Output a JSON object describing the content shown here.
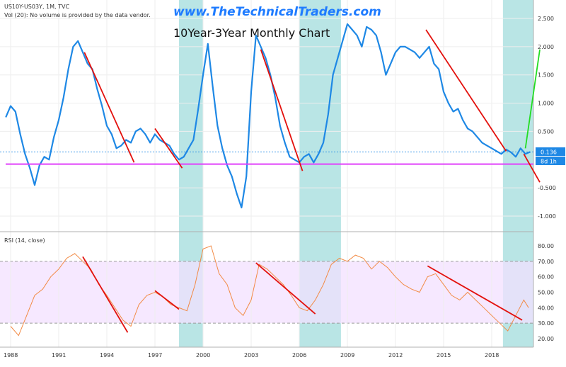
{
  "header": {
    "symbol_line": "US10Y-US03Y, 1M, TVC",
    "volume_note": "Vol (20): No volume is provided by the data vendor.",
    "watermark": "www.TheTechnicalTraders.com",
    "chart_title": "10Year-3Year Monthly Chart"
  },
  "price_pane": {
    "last_value_badge": "0.136",
    "countdown_badge": "8d 1h",
    "badge_color": "#1e88e5",
    "support_line_level": -0.08,
    "support_line_color": "#e040fb",
    "line_color": "#1e88e5",
    "trendline_color": "#e3110d",
    "projection_up_color": "#22dd22",
    "projection_down_color": "#e3110d"
  },
  "rsi_pane": {
    "label": "RSI (14, close)",
    "upper_band": 70,
    "lower_band": 30,
    "band_fill": "#f3e0ff",
    "line_color": "#f28a45"
  },
  "chart_data": [
    {
      "type": "line",
      "title": "10Year-3Year Monthly Chart",
      "series": [
        {
          "name": "US10Y-US03Y",
          "values_x": [
            1987.7,
            1988.0,
            1988.3,
            1988.6,
            1988.9,
            1989.2,
            1989.5,
            1989.8,
            1990.1,
            1990.4,
            1990.7,
            1991.0,
            1991.3,
            1991.6,
            1991.9,
            1992.2,
            1992.5,
            1992.8,
            1993.1,
            1993.4,
            1993.7,
            1994.0,
            1994.3,
            1994.6,
            1994.9,
            1995.2,
            1995.5,
            1995.8,
            1996.1,
            1996.4,
            1996.7,
            1997.0,
            1997.3,
            1997.6,
            1997.9,
            1998.2,
            1998.5,
            1998.8,
            1999.1,
            1999.4,
            1999.7,
            2000.0,
            2000.3,
            2000.6,
            2000.9,
            2001.2,
            2001.5,
            2001.8,
            2002.1,
            2002.4,
            2002.7,
            2003.0,
            2003.3,
            2003.6,
            2003.9,
            2004.2,
            2004.5,
            2004.8,
            2005.1,
            2005.4,
            2005.7,
            2006.0,
            2006.3,
            2006.6,
            2006.9,
            2007.2,
            2007.5,
            2007.8,
            2008.1,
            2008.4,
            2008.7,
            2009.0,
            2009.3,
            2009.6,
            2009.9,
            2010.2,
            2010.5,
            2010.8,
            2011.1,
            2011.4,
            2011.7,
            2012.0,
            2012.3,
            2012.6,
            2012.9,
            2013.2,
            2013.5,
            2013.8,
            2014.1,
            2014.4,
            2014.7,
            2015.0,
            2015.3,
            2015.6,
            2015.9,
            2016.2,
            2016.5,
            2016.8,
            2017.1,
            2017.4,
            2017.7,
            2018.0,
            2018.3,
            2018.6,
            2018.9,
            2019.2,
            2019.5,
            2019.8,
            2020.1,
            2020.4
          ],
          "values_y": [
            0.75,
            0.95,
            0.85,
            0.45,
            0.1,
            -0.15,
            -0.45,
            -0.1,
            0.05,
            0.0,
            0.4,
            0.7,
            1.1,
            1.6,
            2.0,
            2.1,
            1.9,
            1.7,
            1.6,
            1.25,
            0.95,
            0.6,
            0.45,
            0.2,
            0.25,
            0.35,
            0.3,
            0.5,
            0.55,
            0.45,
            0.3,
            0.45,
            0.35,
            0.3,
            0.25,
            0.1,
            0.0,
            0.05,
            0.2,
            0.35,
            0.9,
            1.5,
            2.05,
            1.3,
            0.6,
            0.2,
            -0.1,
            -0.3,
            -0.6,
            -0.85,
            -0.3,
            1.2,
            2.2,
            2.0,
            1.8,
            1.5,
            1.1,
            0.6,
            0.3,
            0.05,
            0.0,
            -0.05,
            0.05,
            0.1,
            -0.05,
            0.1,
            0.3,
            0.8,
            1.5,
            1.8,
            2.1,
            2.4,
            2.3,
            2.2,
            2.0,
            2.35,
            2.3,
            2.2,
            1.9,
            1.5,
            1.7,
            1.9,
            2.0,
            2.0,
            1.95,
            1.9,
            1.8,
            1.9,
            2.0,
            1.7,
            1.6,
            1.2,
            1.0,
            0.85,
            0.9,
            0.7,
            0.55,
            0.5,
            0.4,
            0.3,
            0.25,
            0.2,
            0.15,
            0.1,
            0.18,
            0.13,
            0.05,
            0.2,
            0.1,
            0.136
          ]
        }
      ],
      "x_tick_labels": [
        "1988",
        "1991",
        "1994",
        "1997",
        "2000",
        "2003",
        "2006",
        "2009",
        "2012",
        "2015",
        "2018"
      ],
      "y_tick_labels": [
        "2.500",
        "2.000",
        "1.500",
        "1.000",
        "0.500",
        "-0.500",
        "-1.000"
      ],
      "ylim": [
        -1.25,
        2.85
      ],
      "shaded_periods": [
        [
          1998.5,
          2000.0
        ],
        [
          2006.0,
          2008.6
        ],
        [
          2018.7,
          2020.6
        ]
      ]
    },
    {
      "type": "line",
      "title": "RSI (14, close)",
      "series": [
        {
          "name": "RSI",
          "values_x": [
            1988.0,
            1988.5,
            1989.0,
            1989.5,
            1990.0,
            1990.5,
            1991.0,
            1991.5,
            1992.0,
            1992.5,
            1993.0,
            1993.5,
            1994.0,
            1994.5,
            1995.0,
            1995.5,
            1996.0,
            1996.5,
            1997.0,
            1997.5,
            1998.0,
            1998.5,
            1999.0,
            1999.5,
            2000.0,
            2000.5,
            2001.0,
            2001.5,
            2002.0,
            2002.5,
            2003.0,
            2003.5,
            2004.0,
            2004.5,
            2005.0,
            2005.5,
            2006.0,
            2006.5,
            2007.0,
            2007.5,
            2008.0,
            2008.5,
            2009.0,
            2009.5,
            2010.0,
            2010.5,
            2011.0,
            2011.5,
            2012.0,
            2012.5,
            2013.0,
            2013.5,
            2014.0,
            2014.5,
            2015.0,
            2015.5,
            2016.0,
            2016.5,
            2017.0,
            2017.5,
            2018.0,
            2018.5,
            2019.0,
            2019.5,
            2020.0,
            2020.3
          ],
          "values_y": [
            28,
            22,
            35,
            48,
            52,
            60,
            65,
            72,
            75,
            70,
            65,
            55,
            48,
            40,
            32,
            28,
            42,
            48,
            50,
            47,
            42,
            40,
            38,
            55,
            78,
            80,
            62,
            55,
            40,
            35,
            45,
            68,
            65,
            60,
            55,
            48,
            40,
            38,
            45,
            55,
            68,
            72,
            70,
            74,
            72,
            65,
            70,
            66,
            60,
            55,
            52,
            50,
            60,
            62,
            55,
            48,
            45,
            50,
            45,
            40,
            35,
            30,
            25,
            35,
            45,
            40
          ]
        }
      ],
      "y_tick_labels": [
        "80.00",
        "70.00",
        "60.00",
        "50.00",
        "40.00",
        "30.00",
        "20.00"
      ],
      "ylim": [
        15,
        85
      ]
    }
  ]
}
